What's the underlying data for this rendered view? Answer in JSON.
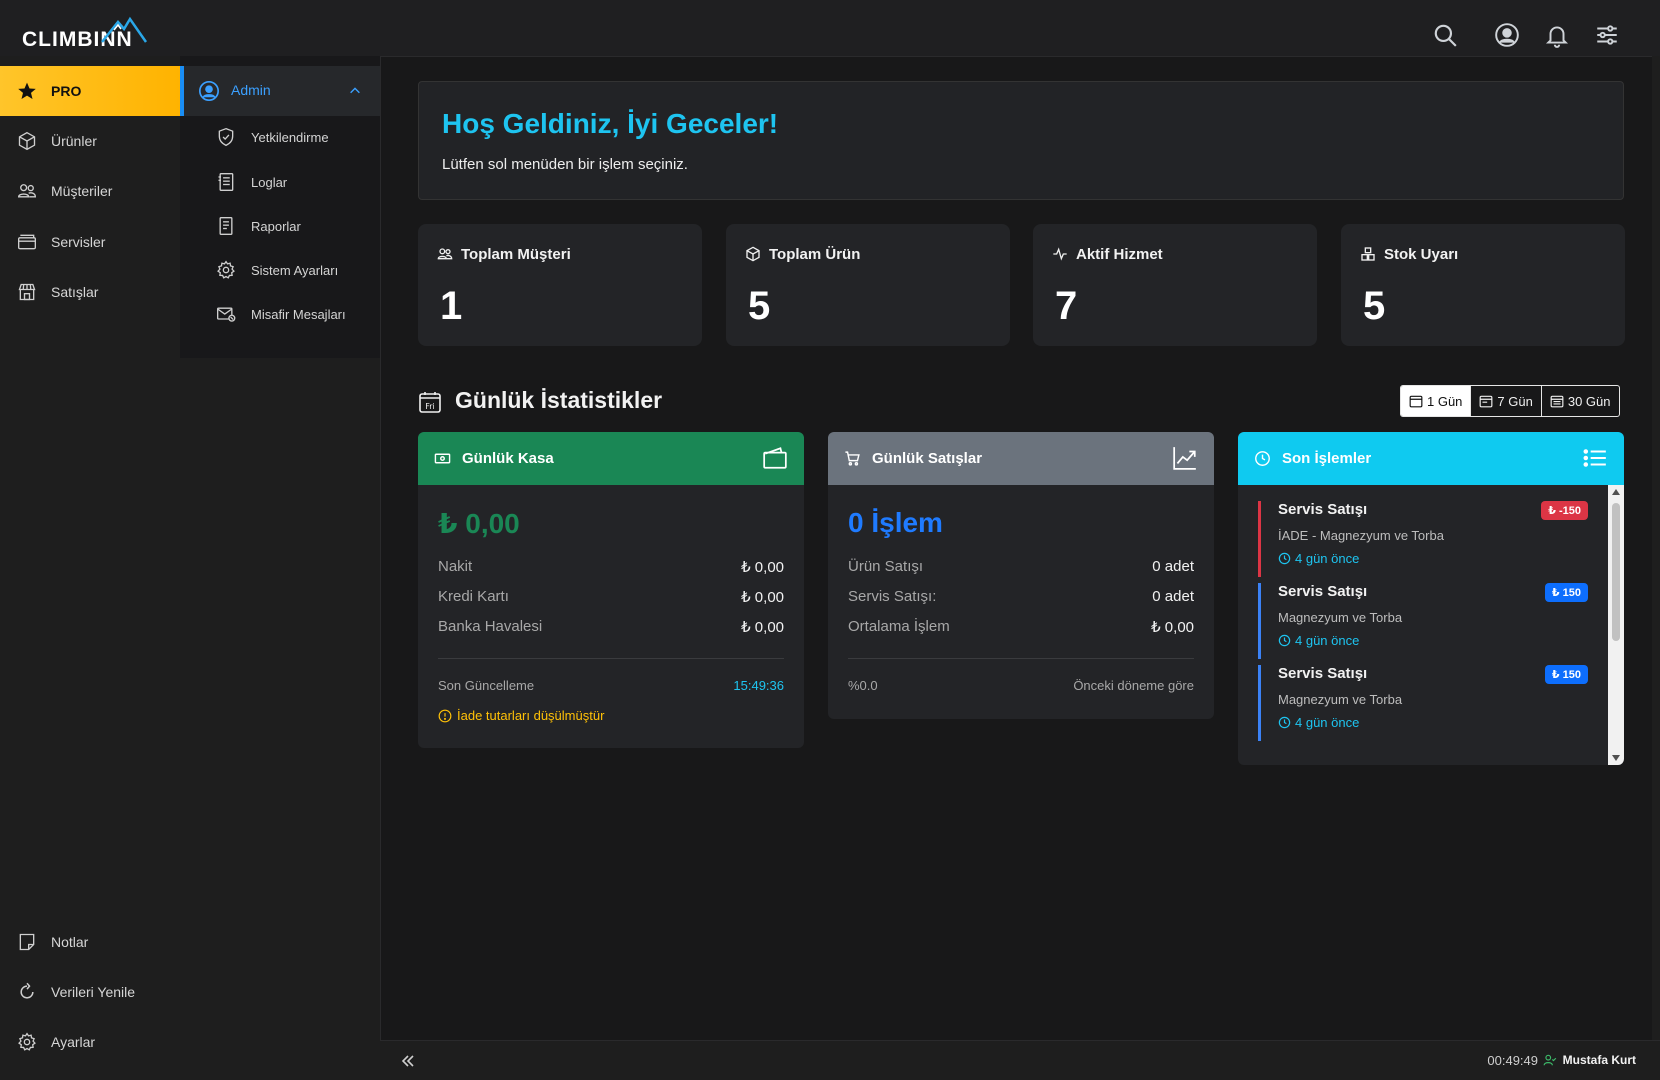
{
  "app": {
    "brand": "CLIMBINN"
  },
  "sidebar": {
    "items": [
      {
        "label": "PRO",
        "icon": "star-icon"
      },
      {
        "label": "Ürünler",
        "icon": "box-icon"
      },
      {
        "label": "Müşteriler",
        "icon": "users-icon"
      },
      {
        "label": "Servisler",
        "icon": "folder-icon"
      },
      {
        "label": "Satışlar",
        "icon": "store-icon"
      }
    ],
    "bottom": [
      {
        "label": "Notlar",
        "icon": "note-icon"
      },
      {
        "label": "Verileri Yenile",
        "icon": "refresh-icon"
      },
      {
        "label": "Ayarlar",
        "icon": "gear-icon"
      }
    ]
  },
  "submenu": {
    "head": "Admin",
    "items": [
      {
        "label": "Yetkilendirme",
        "icon": "shield-icon"
      },
      {
        "label": "Loglar",
        "icon": "log-icon"
      },
      {
        "label": "Raporlar",
        "icon": "report-icon"
      },
      {
        "label": "Sistem Ayarları",
        "icon": "gear-icon"
      },
      {
        "label": "Misafir Mesajları",
        "icon": "mail-icon"
      }
    ]
  },
  "welcome": {
    "title": "Hoş Geldiniz, İyi Geceler!",
    "subtitle": "Lütfen sol menüden bir işlem seçiniz."
  },
  "stats": [
    {
      "label": "Toplam Müşteri",
      "value": "1"
    },
    {
      "label": "Toplam Ürün",
      "value": "5"
    },
    {
      "label": "Aktif Hizmet",
      "value": "7"
    },
    {
      "label": "Stok Uyarı",
      "value": "5"
    }
  ],
  "daily": {
    "title": "Günlük İstatistikler",
    "calendar_day": "Fri",
    "ranges": [
      "1 Gün",
      "7 Gün",
      "30 Gün"
    ],
    "active_range": "1 Gün"
  },
  "kasa": {
    "title": "Günlük Kasa",
    "total": "₺ 0,00",
    "rows": [
      {
        "label": "Nakit",
        "value": "₺ 0,00"
      },
      {
        "label": "Kredi Kartı",
        "value": "₺ 0,00"
      },
      {
        "label": "Banka Havalesi",
        "value": "₺ 0,00"
      }
    ],
    "updated_label": "Son Güncelleme",
    "updated_value": "15:49:36",
    "warning": "İade tutarları düşülmüştür",
    "colors": {
      "header": "#1a8755",
      "total": "#1a8755"
    }
  },
  "sales": {
    "title": "Günlük Satışlar",
    "total": "0 İşlem",
    "rows": [
      {
        "label": "Ürün Satışı",
        "value": "0 adet"
      },
      {
        "label": "Servis Satışı:",
        "value": "0 adet"
      },
      {
        "label": "Ortalama İşlem",
        "value": "₺ 0,00"
      }
    ],
    "change": "%0.0",
    "change_label": "Önceki döneme göre",
    "colors": {
      "header": "#6b737d",
      "total": "#1f7bff"
    }
  },
  "recent": {
    "title": "Son İşlemler",
    "items": [
      {
        "title": "Servis Satışı",
        "sub": "İADE - Magnezyum ve Torba",
        "time": "4 gün önce",
        "amount": "₺ -150",
        "tone": "red"
      },
      {
        "title": "Servis Satışı",
        "sub": "Magnezyum ve Torba",
        "time": "4 gün önce",
        "amount": "₺ 150",
        "tone": "blue"
      },
      {
        "title": "Servis Satışı",
        "sub": "Magnezyum ve Torba",
        "time": "4 gün önce",
        "amount": "₺ 150",
        "tone": "blue"
      }
    ],
    "colors": {
      "header": "#0fcaf0"
    }
  },
  "footer": {
    "time": "00:49:49",
    "user": "Mustafa Kurt"
  }
}
